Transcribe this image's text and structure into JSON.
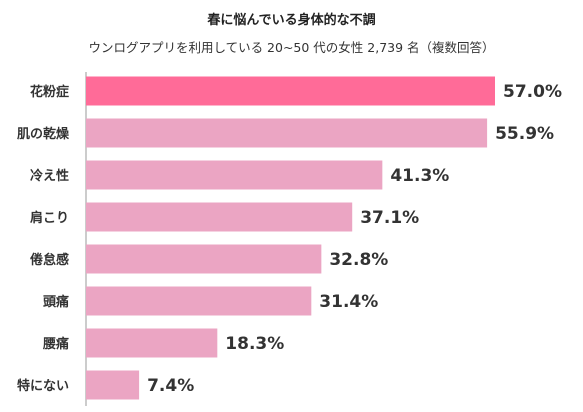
{
  "chart_data": {
    "type": "bar",
    "orientation": "horizontal",
    "title": "春に悩んでいる身体的な不調",
    "subtitle": "ウンログアプリを利用している 20~50 代の女性 2,739 名（複数回答）",
    "categories": [
      "花粉症",
      "肌の乾燥",
      "冷え性",
      "肩こり",
      "倦怠感",
      "頭痛",
      "腰痛",
      "特にない"
    ],
    "values": [
      57.0,
      55.9,
      41.3,
      37.1,
      32.8,
      31.4,
      18.3,
      7.4
    ],
    "value_labels": [
      "57.0%",
      "55.9%",
      "41.3%",
      "37.1%",
      "32.8%",
      "31.4%",
      "18.3%",
      "7.4%"
    ],
    "unit": "%",
    "xlim": [
      0,
      57
    ],
    "colors": {
      "highlight": "#ff6b98",
      "default": "#eba5c3",
      "axis": "#9a9a9a"
    },
    "highlight_index": 0
  }
}
